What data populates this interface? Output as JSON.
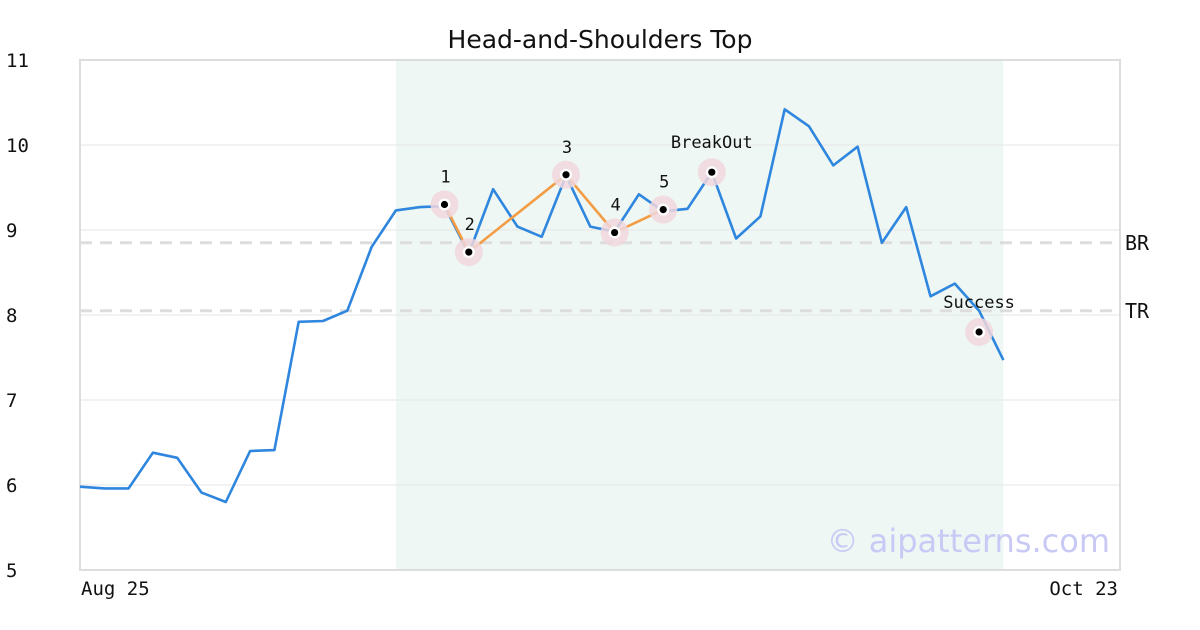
{
  "chart_data": {
    "type": "line",
    "title": "Head-and-Shoulders Top",
    "watermark": "© aipatterns.com",
    "x_start_label": "Aug 25",
    "x_end_label": "Oct 23",
    "ylim": [
      5,
      11
    ],
    "yticks": [
      "5",
      "6",
      "7",
      "8",
      "9",
      "10",
      "11"
    ],
    "grid": true,
    "colors": {
      "price_line": "#2e86de",
      "pattern_line": "#f39c45",
      "highlight_region": "#eef7f3",
      "level_line": "#dddddd",
      "marker_ring": "#f0d7dd"
    },
    "series": [
      {
        "values": [
          5.98,
          5.96,
          5.96,
          6.38,
          6.32,
          5.91,
          5.8,
          6.4,
          6.41,
          7.92,
          7.93,
          8.05,
          8.8,
          9.23,
          9.27,
          9.28,
          8.72,
          9.48,
          9.04,
          8.92,
          9.64,
          9.04,
          8.98,
          9.42,
          9.22,
          9.25,
          9.68,
          8.9,
          9.16,
          10.42,
          10.22,
          9.76,
          9.98,
          8.85,
          9.27,
          8.22,
          8.37,
          8.05,
          7.47
        ]
      }
    ],
    "highlight_range": [
      13,
      38
    ],
    "levels": [
      {
        "label": "BR",
        "value": 8.85
      },
      {
        "label": "TR",
        "value": 8.05
      }
    ],
    "pattern_points": [
      {
        "label": "1",
        "index": 15,
        "value": 9.3
      },
      {
        "label": "2",
        "index": 16,
        "value": 8.74
      },
      {
        "label": "3",
        "index": 20,
        "value": 9.65
      },
      {
        "label": "4",
        "index": 22,
        "value": 8.97
      },
      {
        "label": "5",
        "index": 24,
        "value": 9.24
      }
    ],
    "events": [
      {
        "label": "BreakOut",
        "index": 26,
        "value": 9.68
      },
      {
        "label": "Success",
        "index": 37,
        "value": 7.8
      }
    ]
  }
}
